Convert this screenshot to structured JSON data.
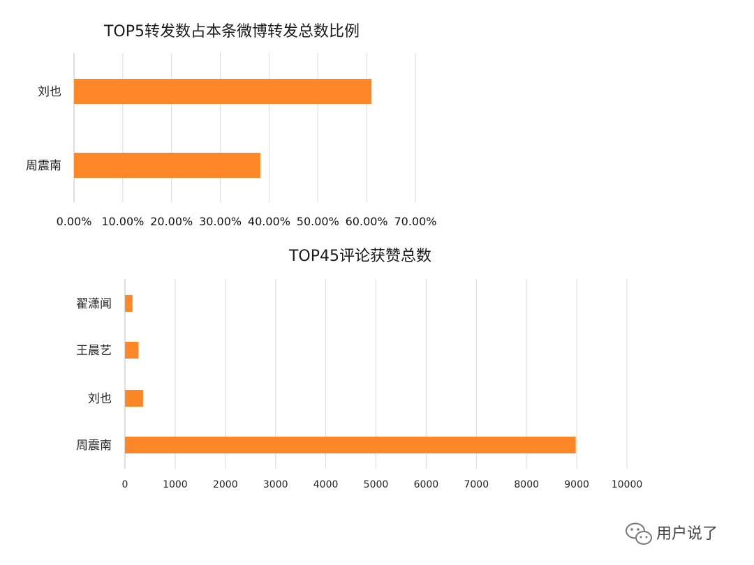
{
  "chart_data": [
    {
      "type": "bar",
      "orientation": "horizontal",
      "title": "TOP5转发数占本条微博转发总数比例",
      "categories": [
        "刘也",
        "周震南"
      ],
      "values": [
        61.0,
        38.2
      ],
      "xlim": [
        0,
        70
      ],
      "ticks": [
        "0.00%",
        "10.00%",
        "20.00%",
        "30.00%",
        "40.00%",
        "50.00%",
        "60.00%",
        "70.00%"
      ],
      "grid": true,
      "color": "#FD8726"
    },
    {
      "type": "bar",
      "orientation": "horizontal",
      "title": "TOP45评论获赞总数",
      "categories": [
        "翟潇闻",
        "王晨艺",
        "刘也",
        "周震南"
      ],
      "values": [
        150,
        270,
        360,
        8980
      ],
      "xlim": [
        0,
        10000
      ],
      "ticks": [
        "0",
        "1000",
        "2000",
        "3000",
        "4000",
        "5000",
        "6000",
        "7000",
        "8000",
        "9000",
        "10000"
      ],
      "grid": true,
      "color": "#FD8726"
    }
  ],
  "watermark": {
    "icon": "wechat-icon",
    "text": "用户说了"
  }
}
